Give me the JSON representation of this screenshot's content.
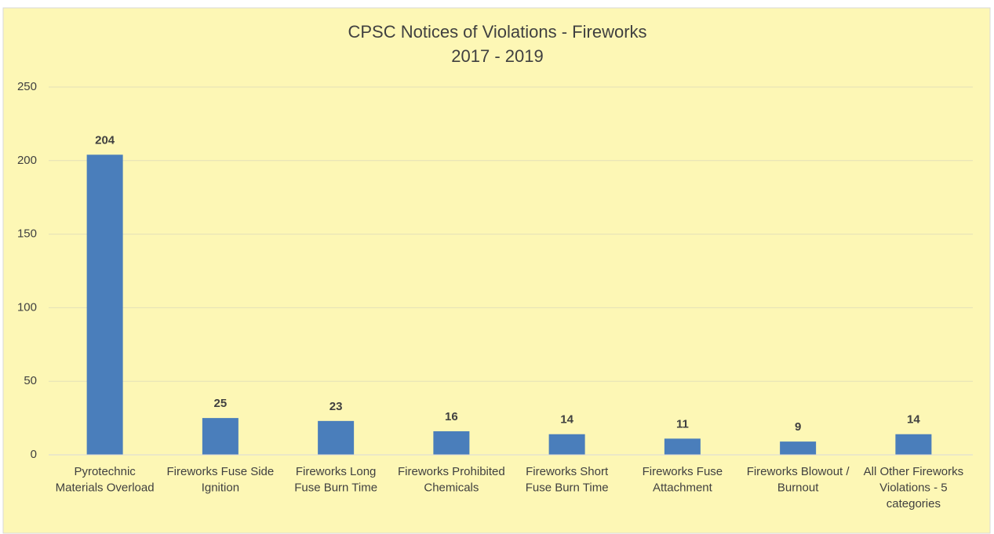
{
  "chart_data": {
    "type": "bar",
    "title": "CPSC Notices of Violations - Fireworks",
    "subtitle": "2017 - 2019",
    "categories": [
      "Pyrotechnic Materials Overload",
      "Fireworks Fuse Side Ignition",
      "Fireworks Long Fuse Burn Time",
      "Fireworks Prohibited Chemicals",
      "Fireworks Short Fuse Burn Time",
      "Fireworks Fuse Attachment",
      "Fireworks Blowout / Burnout",
      "All Other Fireworks Violations - 5 categories"
    ],
    "values": [
      204,
      25,
      23,
      16,
      14,
      11,
      9,
      14
    ],
    "color": "#4a7ebb",
    "ylim": [
      0,
      250
    ],
    "yticks": [
      0,
      50,
      100,
      150,
      200,
      250
    ],
    "grid": true
  }
}
